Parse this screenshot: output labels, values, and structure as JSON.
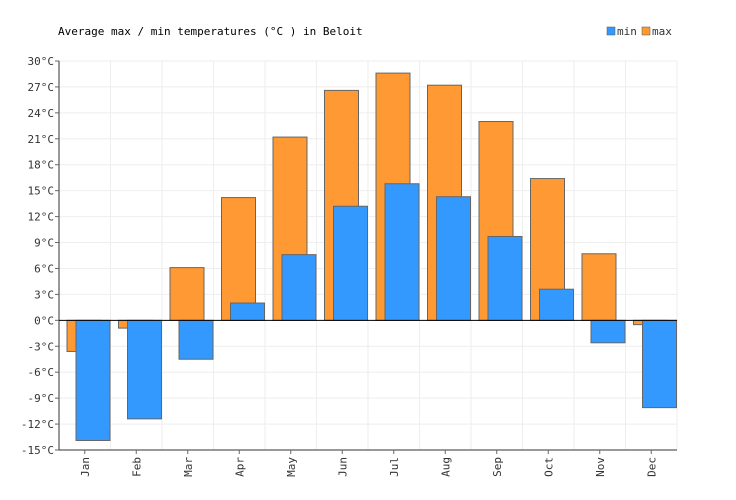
{
  "chart_data": {
    "type": "bar",
    "title": "Average max / min temperatures (°C ) in Beloit",
    "categories": [
      "Jan",
      "Feb",
      "Mar",
      "Apr",
      "May",
      "Jun",
      "Jul",
      "Aug",
      "Sep",
      "Oct",
      "Nov",
      "Dec"
    ],
    "series": [
      {
        "name": "max",
        "color": "#ff9933",
        "values": [
          -3.6,
          -0.9,
          6.1,
          14.2,
          21.2,
          26.6,
          28.6,
          27.2,
          23.0,
          16.4,
          7.7,
          -0.5
        ]
      },
      {
        "name": "min",
        "color": "#3399ff",
        "values": [
          -13.9,
          -11.4,
          -4.5,
          2.0,
          7.6,
          13.2,
          15.8,
          14.3,
          9.7,
          3.6,
          -2.6,
          -10.1
        ]
      }
    ],
    "y_ticks": [
      "30°C",
      "27°C",
      "24°C",
      "21°C",
      "18°C",
      "15°C",
      "12°C",
      "9°C",
      "6°C",
      "3°C",
      "0°C",
      "-3°C",
      "-6°C",
      "-9°C",
      "-12°C",
      "-15°C"
    ],
    "ylim": [
      -15,
      30
    ],
    "grid": true,
    "legend": {
      "position": "top-right",
      "items": [
        "min",
        "max"
      ]
    }
  }
}
